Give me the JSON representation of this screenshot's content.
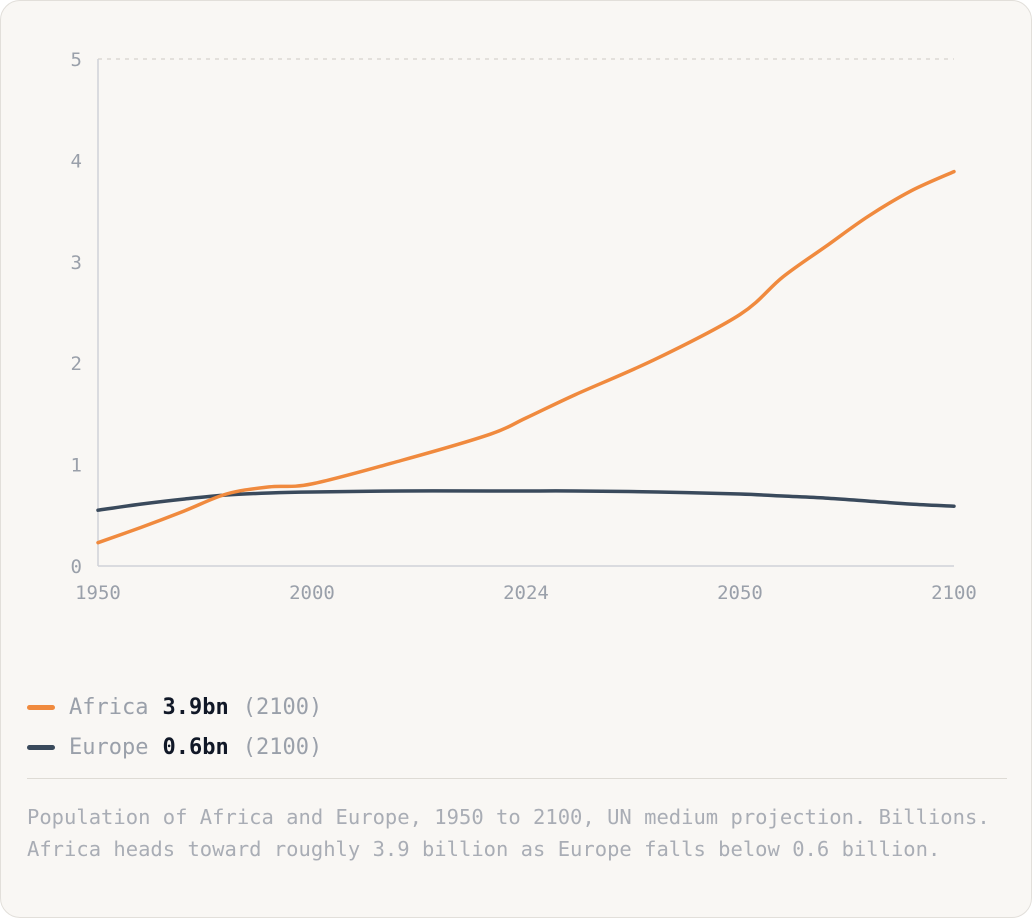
{
  "chart_data": {
    "type": "line",
    "title": "",
    "xlabel": "",
    "ylabel": "",
    "x_ticks": [
      "1950",
      "2000",
      "2024",
      "2050",
      "2100"
    ],
    "y_ticks": [
      "0",
      "1",
      "2",
      "3",
      "4",
      "5"
    ],
    "ylim": [
      0,
      5
    ],
    "grid": "dashed line at top only",
    "legend_position": "bottom-left",
    "series": [
      {
        "name": "Africa",
        "color": "#f08a3e",
        "points": [
          [
            1950,
            0.23
          ],
          [
            1960,
            0.38
          ],
          [
            1970,
            0.54
          ],
          [
            1980,
            0.71
          ],
          [
            1990,
            0.78
          ],
          [
            2000,
            0.81
          ],
          [
            2010,
            1.04
          ],
          [
            2020,
            1.3
          ],
          [
            2024,
            1.46
          ],
          [
            2030,
            1.69
          ],
          [
            2040,
            2.05
          ],
          [
            2050,
            2.48
          ],
          [
            2060,
            2.85
          ],
          [
            2070,
            3.15
          ],
          [
            2080,
            3.45
          ],
          [
            2090,
            3.7
          ],
          [
            2100,
            3.89
          ]
        ]
      },
      {
        "name": "Europe",
        "color": "#3a4a5c",
        "points": [
          [
            1950,
            0.55
          ],
          [
            1960,
            0.61
          ],
          [
            1970,
            0.66
          ],
          [
            1980,
            0.7
          ],
          [
            1990,
            0.72
          ],
          [
            2000,
            0.73
          ],
          [
            2010,
            0.74
          ],
          [
            2020,
            0.74
          ],
          [
            2024,
            0.74
          ],
          [
            2030,
            0.74
          ],
          [
            2040,
            0.73
          ],
          [
            2050,
            0.71
          ],
          [
            2060,
            0.69
          ],
          [
            2070,
            0.67
          ],
          [
            2080,
            0.64
          ],
          [
            2090,
            0.61
          ],
          [
            2100,
            0.59
          ]
        ]
      }
    ]
  },
  "legend": {
    "africa": {
      "name": "Africa",
      "value": "3.9bn",
      "year": "(2100)",
      "color": "#f08a3e"
    },
    "europe": {
      "name": "Europe",
      "value": "0.6bn",
      "year": "(2100)",
      "color": "#3a4a5c"
    }
  },
  "caption": "Population of Africa and Europe, 1950 to 2100, UN medium projection. Billions. Africa heads toward roughly 3.9 billion as Europe falls below 0.6 billion."
}
